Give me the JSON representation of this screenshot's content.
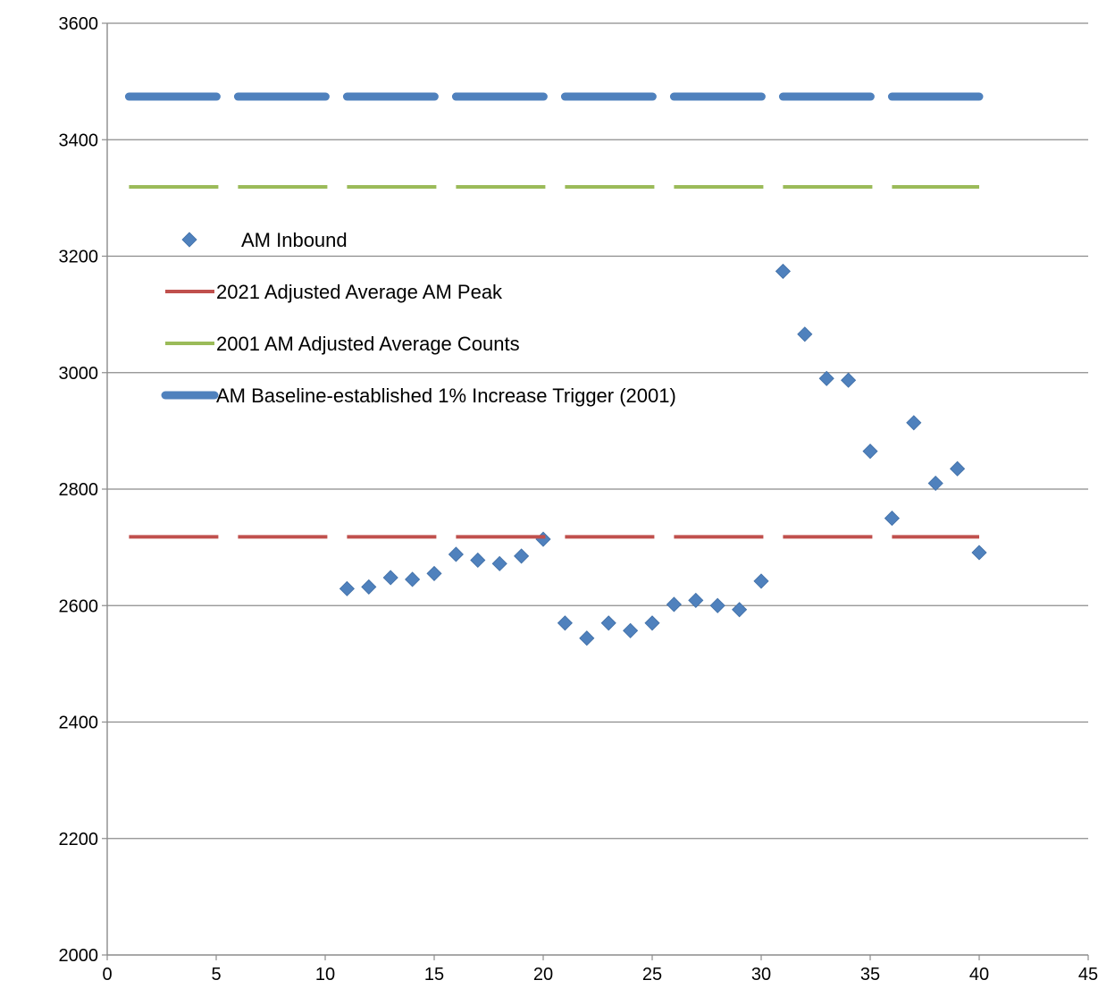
{
  "chart_data": {
    "type": "scatter",
    "title": "",
    "xlabel": "",
    "ylabel": "",
    "xlim": [
      0,
      45
    ],
    "ylim": [
      2000,
      3600
    ],
    "xticks": [
      0,
      5,
      10,
      15,
      20,
      25,
      30,
      35,
      40,
      45
    ],
    "yticks": [
      2000,
      2200,
      2400,
      2600,
      2800,
      3000,
      3200,
      3400,
      3600
    ],
    "grid": "horizontal",
    "legend_position": "upper-left inside plot",
    "series": [
      {
        "name": "AM Inbound",
        "type": "scatter",
        "marker": "diamond",
        "color": "#4F81BD",
        "x": [
          11,
          12,
          13,
          14,
          15,
          16,
          17,
          18,
          19,
          20,
          21,
          22,
          23,
          24,
          25,
          26,
          27,
          28,
          29,
          30,
          31,
          32,
          33,
          34,
          35,
          36,
          37,
          38,
          39,
          40
        ],
        "y": [
          2629,
          2632,
          2648,
          2645,
          2655,
          2688,
          2678,
          2672,
          2685,
          2714,
          2570,
          2544,
          2570,
          2557,
          2570,
          2602,
          2609,
          2600,
          2593,
          2642,
          3174,
          3066,
          2990,
          2987,
          2865,
          2750,
          2914,
          2810,
          2835,
          2691
        ]
      },
      {
        "name": "2021 Adjusted Average AM Peak",
        "type": "line",
        "style": "dashed",
        "color": "#C0504D",
        "x": [
          1,
          40
        ],
        "y": [
          2718,
          2718
        ]
      },
      {
        "name": "2001 AM Adjusted Average  Counts",
        "type": "line",
        "style": "dashed",
        "color": "#9BBB59",
        "x": [
          1,
          40
        ],
        "y": [
          3319,
          3319
        ]
      },
      {
        "name": "AM Baseline-established 1% Increase Trigger (2001)",
        "type": "line",
        "style": "dashed-glow",
        "color": "#4F81BD",
        "x": [
          1,
          40
        ],
        "y": [
          3474,
          3474
        ]
      }
    ]
  }
}
